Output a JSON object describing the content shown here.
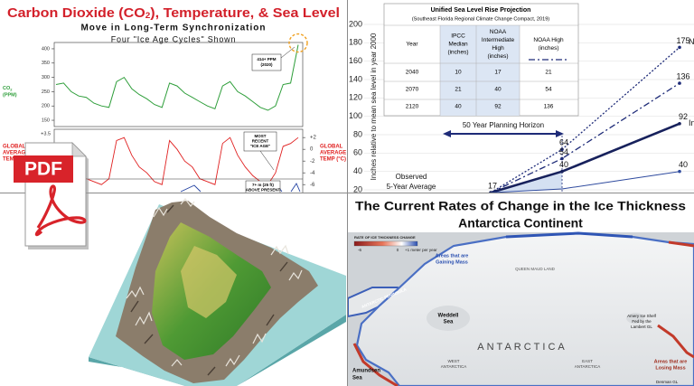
{
  "climate_chart": {
    "title": {
      "before": "Carbon Dioxide (CO",
      "subscript": "2",
      "after": "), Temperature, & Sea Level"
    },
    "subtitle": "Move in Long-Term Synchronization",
    "caption": "Four \"Ice Age Cycles\" Shown",
    "co2": {
      "label": [
        "CO",
        "2",
        "(PPM)"
      ],
      "ylim": [
        128,
        422
      ],
      "yticks": [
        150,
        200,
        250,
        300,
        350,
        400
      ],
      "color": "#2e9e3a",
      "values": [
        275,
        280,
        250,
        235,
        230,
        210,
        200,
        195,
        285,
        300,
        260,
        240,
        225,
        205,
        195,
        280,
        270,
        245,
        230,
        215,
        200,
        190,
        270,
        285,
        250,
        235,
        215,
        195,
        185,
        200,
        275,
        280,
        414
      ],
      "annotation": [
        "414+ PPM",
        "(2020)"
      ]
    },
    "temperature": {
      "left_label": [
        "GLOBAL",
        "AVERAGE",
        "TEMP"
      ],
      "left_tick": "+3.5",
      "right_label": [
        "GLOBAL",
        "AVERAGE",
        "TEMP (°C)"
      ],
      "ylim": [
        -7.2,
        3.1
      ],
      "yticks": [
        {
          "value": 2,
          "label": "+2"
        },
        0,
        -2,
        -4,
        -6
      ],
      "color": "#e02020",
      "values": [
        0.5,
        -1,
        -3,
        -4,
        -5,
        -5.5,
        -6,
        -5,
        1.5,
        2,
        -1,
        -3,
        -4,
        -5.5,
        -6,
        1.5,
        0,
        -2,
        -3,
        -5,
        -5.5,
        -6,
        1,
        2,
        -1,
        -3,
        -4.5,
        -5.5,
        -6,
        -4,
        0.5,
        1,
        2
      ],
      "annotation": [
        "MOST",
        "RECENT",
        "\"ICE AGE\""
      ]
    },
    "sea_level": {
      "annotation": [
        "7+ m (25 ft)",
        "ABOVE PRESENT"
      ]
    }
  },
  "pdf_icon": {
    "label": "PDF"
  },
  "sea_level_projection": {
    "axis_label": "Inches relative to mean sea level in year 2000",
    "ylim": [
      20,
      200
    ],
    "yticks": [
      20,
      40,
      60,
      80,
      100,
      120,
      140,
      160,
      180,
      200
    ],
    "grid": true,
    "table": {
      "title": "Unified Sea Level Rise Projection",
      "subtitle": "(Southeast Florida Regional Climate Change Compact, 2019)",
      "header": [
        [
          "Year"
        ],
        [
          "IPCC",
          "Median",
          "(inches)"
        ],
        [
          "NOAA",
          "Intermediate",
          "High",
          "(inches)"
        ],
        [
          "NOAA High",
          "(inches)"
        ]
      ],
      "rows": [
        [
          2040,
          10,
          17,
          21
        ],
        [
          2070,
          21,
          40,
          54
        ],
        [
          2120,
          40,
          92,
          136
        ]
      ]
    },
    "horizon": "50 Year Planning Horizon",
    "observed": [
      "Observed",
      "5-Year Average"
    ],
    "categories": [
      null,
      null,
      null
    ],
    "series": [
      {
        "color": "#1e2b78",
        "dash": "2,2",
        "width": 1.3,
        "values": [
          17,
          64,
          175
        ],
        "value_labels": [
          null,
          "64",
          "175"
        ],
        "end_label": "N"
      },
      {
        "color": "#1e2b78",
        "dash": "7,3,2,3",
        "width": 1.3,
        "values": [
          17,
          54,
          136
        ],
        "value_labels": [
          null,
          "54",
          "136"
        ]
      },
      {
        "color": "#17215c",
        "dash": "none",
        "width": 2.6,
        "values": [
          17,
          40,
          92
        ],
        "value_labels": [
          "17",
          "40",
          "92"
        ],
        "end_label": "Int"
      },
      {
        "color": "#2e4a9e",
        "dash": "none",
        "width": 1,
        "values": [
          17,
          21,
          40
        ],
        "value_labels": [
          null,
          null,
          "40"
        ]
      }
    ]
  },
  "ice_thickness_map": {
    "title": [
      "The Current Rates of Change in the Ice Thickness",
      "Antarctica Continent"
    ],
    "legend": {
      "title": "RATE OF ICE THICKNESS CHANGE",
      "min": "-6",
      "mid": "0",
      "max": "+1 meter per year"
    },
    "labels": {
      "gaining": [
        "Areas that are",
        "Gaining Mass"
      ],
      "peninsula": "ANTARCTIC PENINSULA",
      "weddell": [
        "Weddell",
        "Sea"
      ],
      "queen_maud": "QUEEN MAUD LAND",
      "continent": "ANTARCTICA",
      "west": [
        "WEST",
        "ANTARCTICA"
      ],
      "east": [
        "EAST",
        "ANTARCTICA"
      ],
      "amery": [
        "Amery Ice Shelf",
        "Fed by the",
        "Lambert GL"
      ],
      "losing": [
        "Areas that are",
        "Losing Mass"
      ],
      "amundsen": [
        "Amundsen",
        "Sea"
      ],
      "denman": "Denman GL"
    }
  }
}
